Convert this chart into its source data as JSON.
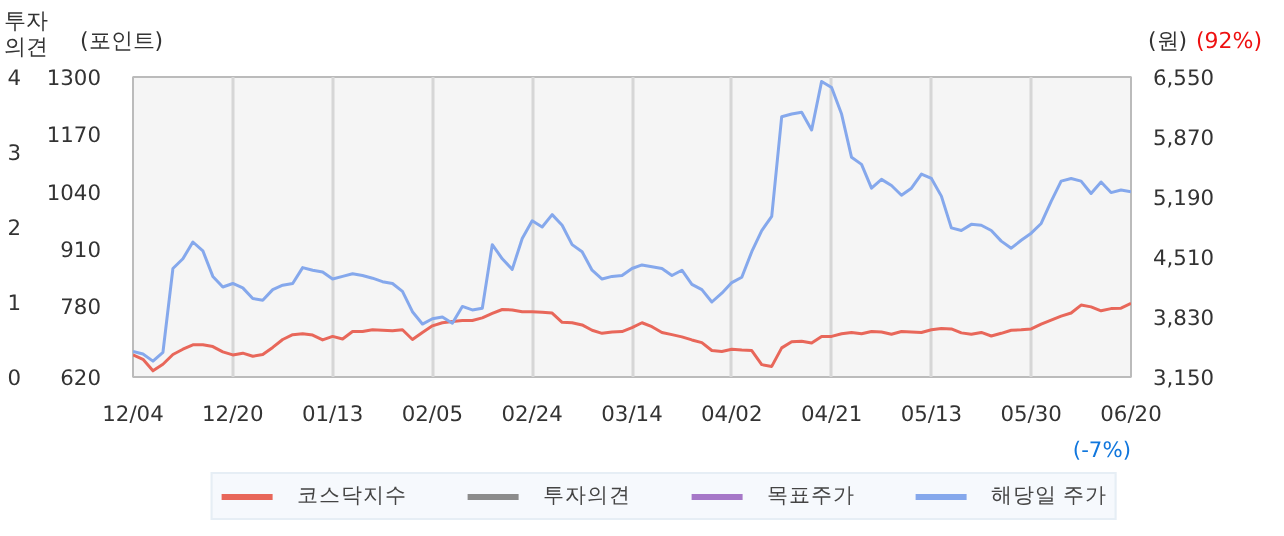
{
  "chart_data": {
    "type": "line",
    "ylabel": "(포인트)",
    "y2label": "(원)",
    "y3label": "투자\n의견",
    "annotations": [
      "(92%)",
      "(-7%)"
    ],
    "categories": [
      "12/04",
      null,
      null,
      null,
      null,
      null,
      null,
      null,
      null,
      null,
      "12/20",
      null,
      null,
      null,
      null,
      null,
      null,
      null,
      null,
      null,
      "01/13",
      null,
      null,
      null,
      null,
      null,
      null,
      null,
      null,
      null,
      "02/05",
      null,
      null,
      null,
      null,
      null,
      null,
      null,
      null,
      null,
      "02/24",
      null,
      null,
      null,
      null,
      null,
      null,
      null,
      null,
      null,
      "03/14",
      null,
      null,
      null,
      null,
      null,
      null,
      null,
      null,
      null,
      "04/02",
      null,
      null,
      null,
      null,
      null,
      null,
      null,
      null,
      null,
      "04/21",
      null,
      null,
      null,
      null,
      null,
      null,
      null,
      null,
      null,
      "05/13",
      null,
      null,
      null,
      null,
      null,
      null,
      null,
      null,
      null,
      "05/30",
      null,
      null,
      null,
      null,
      null,
      null,
      null,
      null,
      null,
      "06/20"
    ],
    "ylim": [
      620,
      1300
    ],
    "yticks": [
      620,
      780,
      910,
      1040,
      1170,
      1300
    ],
    "y2lim": [
      3150,
      6550
    ],
    "y2ticks": [
      {
        "value": 3150,
        "label": "3,150"
      },
      {
        "value": 3830,
        "label": "3,830"
      },
      {
        "value": 4510,
        "label": "4,510"
      },
      {
        "value": 5190,
        "label": "5,190"
      },
      {
        "value": 5870,
        "label": "5,870"
      },
      {
        "value": 6550,
        "label": "6,550"
      }
    ],
    "y3lim": [
      0,
      4
    ],
    "y3ticks": [
      0,
      1,
      2,
      3,
      4
    ],
    "grid": "x",
    "legend": "bottom",
    "line_style": "solid",
    "series": [
      {
        "name": "코스닥지수",
        "color": "#e8675a",
        "values": [
          670,
          660,
          634,
          649,
          671,
          683,
          693,
          693,
          689,
          677,
          670,
          674,
          667,
          671,
          687,
          705,
          716,
          718,
          715,
          704,
          712,
          706,
          723,
          723,
          727,
          726,
          725,
          727,
          705,
          721,
          736,
          743,
          746,
          748,
          748,
          754,
          764,
          773,
          772,
          768,
          768,
          767,
          765,
          744,
          743,
          738,
          726,
          719,
          722,
          723,
          732,
          743,
          734,
          721,
          716,
          711,
          704,
          698,
          680,
          678,
          683,
          681,
          680,
          648,
          644,
          686,
          700,
          701,
          697,
          712,
          712,
          718,
          721,
          718,
          723,
          722,
          717,
          723,
          722,
          721,
          727,
          730,
          729,
          720,
          717,
          721,
          713,
          719,
          726,
          727,
          729,
          740,
          749,
          758,
          765,
          783,
          779,
          770,
          775,
          776,
          787
        ]
      },
      {
        "name": "투자의견",
        "color": "#8c8c8c",
        "values": [
          null,
          null,
          null,
          null,
          null,
          null,
          null,
          null,
          null,
          null,
          null,
          null,
          null,
          null,
          null,
          null,
          null,
          null,
          null,
          null,
          null,
          null,
          null,
          null,
          null,
          null,
          null,
          null,
          null,
          null,
          null,
          null,
          null,
          null,
          null,
          null,
          null,
          null,
          null,
          null,
          null,
          null,
          null,
          null,
          null,
          null,
          null,
          null,
          null,
          null,
          null,
          null,
          null,
          null,
          null,
          null,
          null,
          null,
          null,
          null,
          null,
          null,
          null,
          null,
          null,
          null,
          null,
          null,
          null,
          null,
          null,
          null,
          null,
          null,
          null,
          null,
          null,
          null,
          null,
          null,
          null,
          null,
          null,
          null,
          null,
          null,
          null,
          null,
          null,
          null,
          null,
          null,
          null,
          null,
          null,
          null,
          null,
          null,
          null,
          null,
          null
        ]
      },
      {
        "name": "목표주가",
        "color": "#a678c8",
        "values": [
          null,
          null,
          null,
          null,
          null,
          null,
          null,
          null,
          null,
          null,
          null,
          null,
          null,
          null,
          null,
          null,
          null,
          null,
          null,
          null,
          null,
          null,
          null,
          null,
          null,
          null,
          null,
          null,
          null,
          null,
          null,
          null,
          null,
          null,
          null,
          null,
          null,
          null,
          null,
          null,
          null,
          null,
          null,
          null,
          null,
          null,
          null,
          null,
          null,
          null,
          null,
          null,
          null,
          null,
          null,
          null,
          null,
          null,
          null,
          null,
          null,
          null,
          null,
          null,
          null,
          null,
          null,
          null,
          null,
          null,
          null,
          null,
          null,
          null,
          null,
          null,
          null,
          null,
          null,
          null,
          null,
          null,
          null,
          null,
          null,
          null,
          null,
          null,
          null,
          null,
          null,
          null,
          null,
          null,
          null,
          null,
          null,
          null,
          null,
          null,
          null
        ]
      },
      {
        "name": "해당일 주가",
        "color": "#85a8ec",
        "axis": "y2",
        "values": [
          3440,
          3410,
          3330,
          3430,
          4380,
          4490,
          4680,
          4580,
          4290,
          4170,
          4210,
          4160,
          4040,
          4020,
          4140,
          4190,
          4210,
          4390,
          4360,
          4340,
          4260,
          4290,
          4320,
          4300,
          4270,
          4230,
          4210,
          4120,
          3890,
          3750,
          3810,
          3830,
          3760,
          3950,
          3910,
          3930,
          4650,
          4490,
          4370,
          4720,
          4920,
          4850,
          4990,
          4870,
          4650,
          4570,
          4360,
          4260,
          4290,
          4300,
          4380,
          4420,
          4400,
          4380,
          4300,
          4360,
          4200,
          4140,
          4000,
          4100,
          4220,
          4280,
          4570,
          4810,
          4970,
          6100,
          6130,
          6150,
          5950,
          6500,
          6430,
          6130,
          5640,
          5560,
          5290,
          5390,
          5320,
          5210,
          5290,
          5450,
          5400,
          5200,
          4840,
          4810,
          4880,
          4870,
          4810,
          4690,
          4610,
          4700,
          4780,
          4890,
          5140,
          5370,
          5400,
          5370,
          5230,
          5360,
          5240,
          5270,
          5250
        ]
      }
    ]
  }
}
